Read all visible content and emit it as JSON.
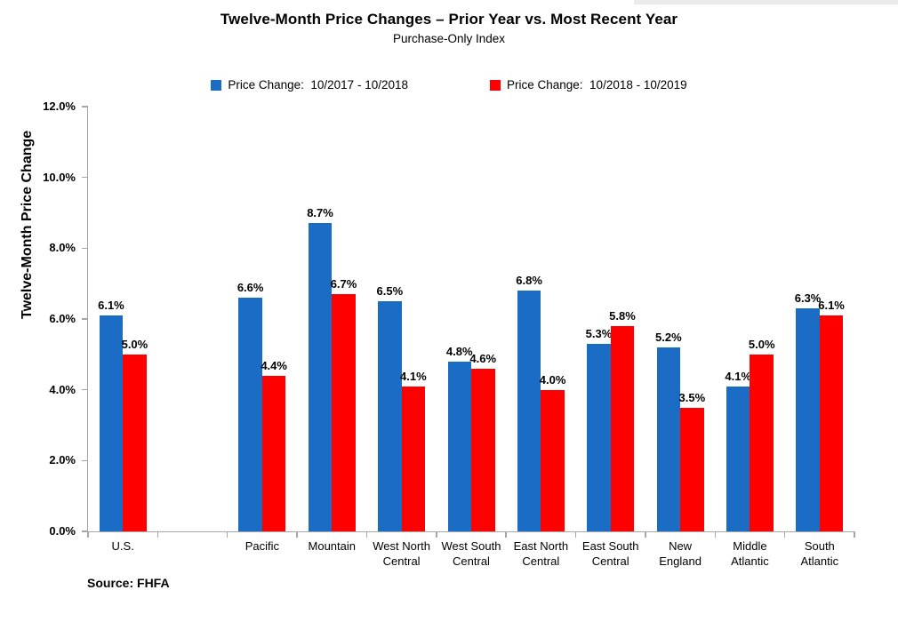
{
  "chart_data": {
    "type": "bar",
    "title": "Twelve-Month Price Changes – Prior Year vs. Most Recent Year",
    "subtitle": "Purchase-Only Index",
    "ylabel": "Twelve-Month Price Change",
    "source": "Source: FHFA",
    "categories": [
      "U.S.",
      "Pacific",
      "Mountain",
      "West North Central",
      "West South Central",
      "East North Central",
      "East South Central",
      "New England",
      "Middle Atlantic",
      "South Atlantic"
    ],
    "category_label_lines": [
      [
        "U.S."
      ],
      [
        "Pacific"
      ],
      [
        "Mountain"
      ],
      [
        "West North",
        "Central"
      ],
      [
        "West South",
        "Central"
      ],
      [
        "East North",
        "Central"
      ],
      [
        "East South",
        "Central"
      ],
      [
        "New",
        "England"
      ],
      [
        "Middle",
        "Atlantic"
      ],
      [
        "South",
        "Atlantic"
      ]
    ],
    "series": [
      {
        "name": "Price Change:  10/2017 - 10/2018",
        "color": "#1B6CC4",
        "values": [
          6.1,
          6.6,
          8.7,
          6.5,
          4.8,
          6.8,
          5.3,
          5.2,
          4.1,
          6.3
        ]
      },
      {
        "name": "Price Change:  10/2018 - 10/2019",
        "color": "#FF0000",
        "values": [
          5.0,
          4.4,
          6.7,
          4.1,
          4.6,
          4.0,
          5.8,
          3.5,
          5.0,
          6.1
        ]
      }
    ],
    "ylim": [
      0,
      12
    ],
    "ytick_step": 2,
    "ytick_suffix": "%",
    "grid": false,
    "legend_position": "top",
    "layout": {
      "slots": 11,
      "category_slot_index": [
        0,
        2,
        3,
        4,
        5,
        6,
        7,
        8,
        9,
        10
      ]
    }
  }
}
